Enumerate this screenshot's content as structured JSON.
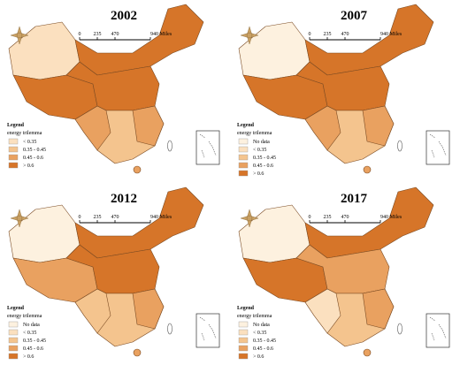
{
  "panels": [
    {
      "title": "2002",
      "scale_bar": [
        "0",
        "235",
        "470",
        "940 Miles"
      ],
      "legend": {
        "title": "Legend",
        "subtitle": "energy trilemma",
        "items": [
          "< 0.35",
          "0.35 - 0.45",
          "0.45 - 0.6",
          "> 0.6"
        ]
      }
    },
    {
      "title": "2007",
      "scale_bar": [
        "0",
        "235",
        "470",
        "940 Miles"
      ],
      "legend": {
        "title": "Legend",
        "subtitle": "energy trilemma",
        "items": [
          "No data",
          "< 0.35",
          "0.35 - 0.45",
          "0.45 - 0.6",
          "> 0.6"
        ]
      }
    },
    {
      "title": "2012",
      "scale_bar": [
        "0",
        "235",
        "470",
        "940 Miles"
      ],
      "legend": {
        "title": "Legend",
        "subtitle": "energy trilemma",
        "items": [
          "No data",
          "< 0.35",
          "0.35 - 0.45",
          "0.45 - 0.6",
          "> 0.6"
        ]
      }
    },
    {
      "title": "2017",
      "scale_bar": [
        "0",
        "235",
        "470",
        "940 Miles"
      ],
      "legend": {
        "title": "Legend",
        "subtitle": "energy trilemma",
        "items": [
          "No data",
          "< 0.35",
          "0.35 - 0.45",
          "0.45 - 0.6",
          "> 0.6"
        ]
      }
    }
  ]
}
